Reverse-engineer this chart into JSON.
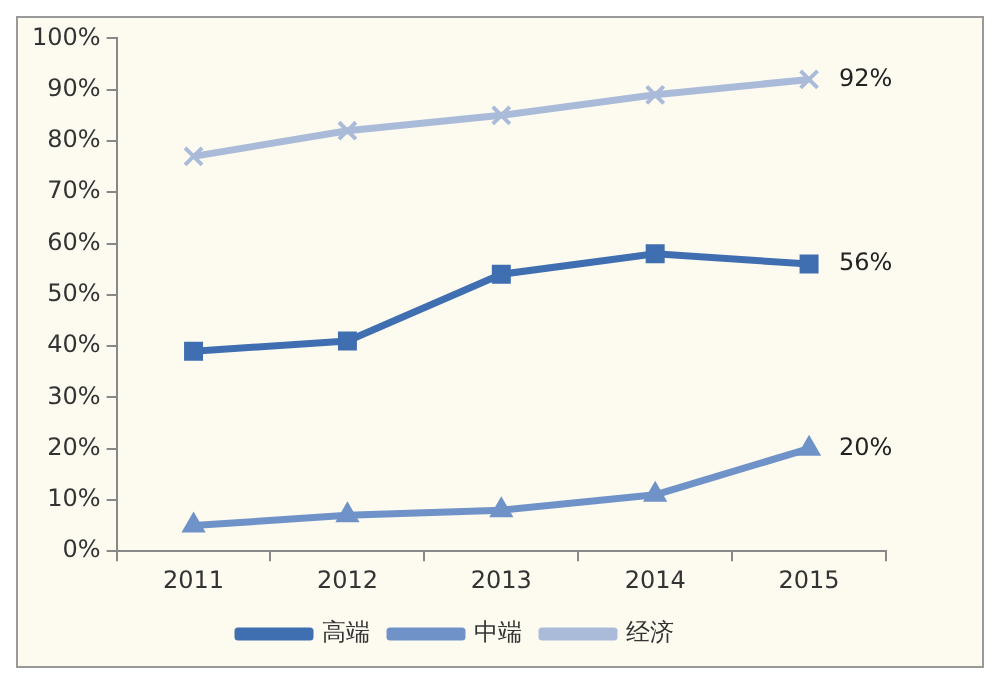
{
  "chart_data": {
    "type": "line",
    "categories": [
      "2011",
      "2012",
      "2013",
      "2014",
      "2015"
    ],
    "series": [
      {
        "name": "高端",
        "color": "#3f6fb0",
        "marker": "square",
        "values": [
          39,
          41,
          54,
          58,
          56
        ],
        "value_labels": [
          null,
          null,
          null,
          null,
          "56%"
        ]
      },
      {
        "name": "中端",
        "color": "#6f93c8",
        "marker": "triangle",
        "values": [
          5,
          7,
          8,
          11,
          20
        ],
        "value_labels": [
          null,
          null,
          null,
          null,
          "20%"
        ]
      },
      {
        "name": "经济",
        "color": "#aabbd9",
        "marker": "cross",
        "values": [
          77,
          82,
          85,
          89,
          92
        ],
        "value_labels": [
          null,
          null,
          null,
          null,
          "92%"
        ]
      }
    ],
    "ylim": [
      0,
      100
    ],
    "yticks": [
      {
        "value": 0,
        "label": "0%"
      },
      {
        "value": 10,
        "label": "10%"
      },
      {
        "value": 20,
        "label": "20%"
      },
      {
        "value": 30,
        "label": "30%"
      },
      {
        "value": 40,
        "label": "40%"
      },
      {
        "value": 50,
        "label": "50%"
      },
      {
        "value": 60,
        "label": "60%"
      },
      {
        "value": 70,
        "label": "70%"
      },
      {
        "value": 80,
        "label": "80%"
      },
      {
        "value": 90,
        "label": "90%"
      },
      {
        "value": 100,
        "label": "100%"
      }
    ],
    "grid": false,
    "legend": "bottom",
    "line_style": "solid"
  }
}
